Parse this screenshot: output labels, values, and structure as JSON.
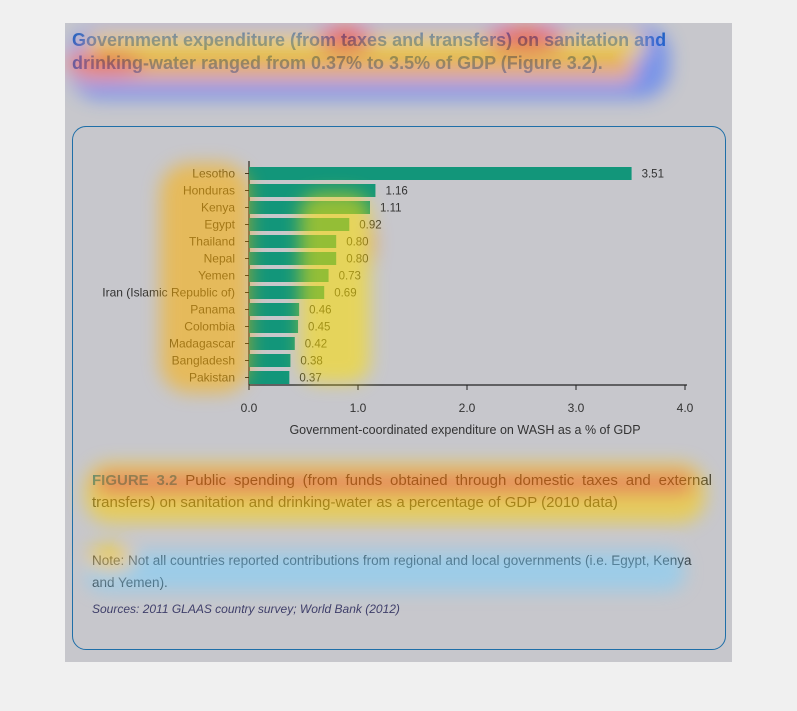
{
  "headline": "Government expenditure (from taxes and transfers) on sanitation and drinking-water ranged from 0.37% to 3.5% of GDP (Figure 3.2).",
  "chart_data": {
    "type": "bar",
    "orientation": "horizontal",
    "categories": [
      "Lesotho",
      "Honduras",
      "Kenya",
      "Egypt",
      "Thailand",
      "Nepal",
      "Yemen",
      "Iran (Islamic Republic of)",
      "Panama",
      "Colombia",
      "Madagascar",
      "Bangladesh",
      "Pakistan"
    ],
    "values": [
      3.51,
      1.16,
      1.11,
      0.92,
      0.8,
      0.8,
      0.73,
      0.69,
      0.46,
      0.45,
      0.42,
      0.38,
      0.37
    ],
    "value_labels": [
      "3.51",
      "1.16",
      "1.11",
      "0.92",
      "0.80",
      "0.80",
      "0.73",
      "0.69",
      "0.46",
      "0.45",
      "0.42",
      "0.38",
      "0.37"
    ],
    "xticks": [
      "0.0",
      "1.0",
      "2.0",
      "3.0",
      "4.0"
    ],
    "xlim": [
      0,
      4
    ],
    "xlabel": "Government-coordinated expenditure on WASH as a % of GDP",
    "bar_color": "#12967a",
    "grid": false
  },
  "caption": {
    "figure_label": "FIGURE 3.2",
    "text": " Public spending (from funds obtained through domestic taxes and external transfers) on sanitation and drinking-water as a percentage of GDP (2010 data)"
  },
  "note": "Note: Not all countries reported contributions from regional and local governments (i.e. Egypt, Kenya and Yemen).",
  "sources": "Sources: 2011 GLAAS country survey; World Bank (2012)",
  "colors": {
    "headline": "#1a5fb4",
    "frame": "#1f6fa8",
    "bar": "#12967a"
  }
}
